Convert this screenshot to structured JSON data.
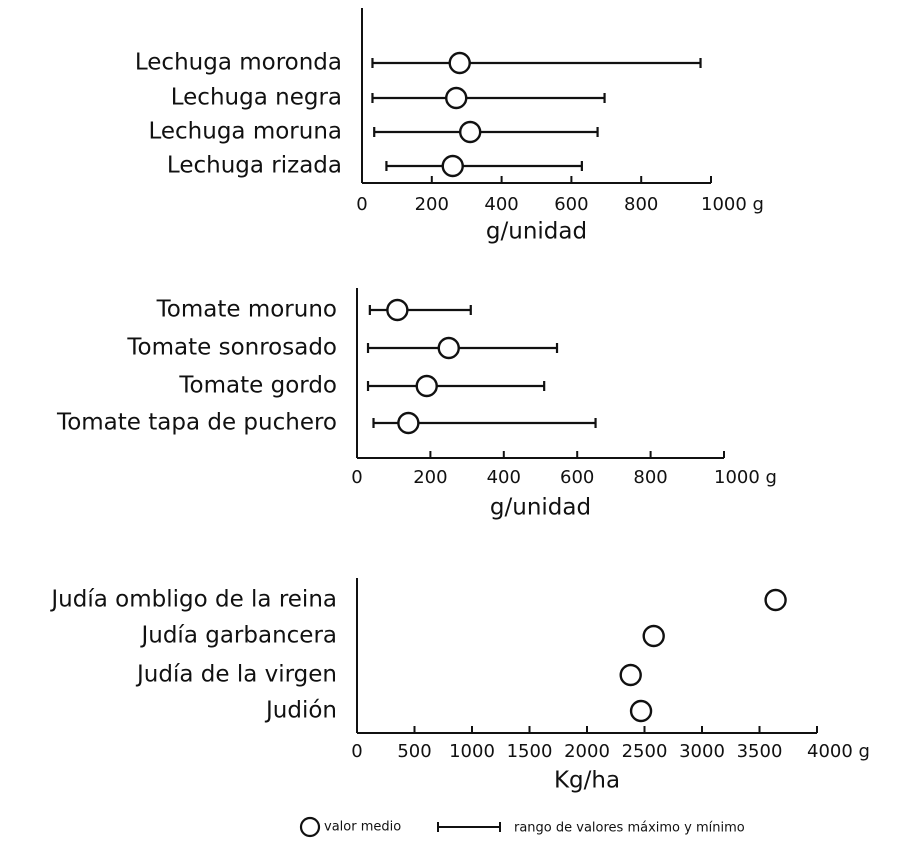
{
  "chart_data": [
    {
      "type": "range-dot",
      "categories": [
        "Lechuga moronda",
        "Lechuga negra",
        "Lechuga moruna",
        "Lechuga rizada"
      ],
      "mean": [
        280,
        270,
        310,
        260
      ],
      "min": [
        30,
        30,
        35,
        70
      ],
      "max": [
        970,
        695,
        675,
        630
      ],
      "xlim": [
        0,
        1000
      ],
      "xticks": [
        0,
        200,
        400,
        600,
        800,
        {
          "value": 1000,
          "label": "1000 g"
        }
      ],
      "x_label": "g/unidad"
    },
    {
      "type": "range-dot",
      "categories": [
        "Tomate moruno",
        "Tomate sonrosado",
        "Tomate gordo",
        "Tomate tapa de puchero"
      ],
      "mean": [
        110,
        250,
        190,
        140
      ],
      "min": [
        35,
        30,
        30,
        45
      ],
      "max": [
        310,
        545,
        510,
        650
      ],
      "xlim": [
        0,
        1000
      ],
      "xticks": [
        0,
        200,
        400,
        600,
        800,
        {
          "value": 1000,
          "label": "1000 g"
        }
      ],
      "x_label": "g/unidad"
    },
    {
      "type": "dot",
      "categories": [
        "Judía ombligo de la reina",
        "Judía garbancera",
        "Judía de la virgen",
        "Judión"
      ],
      "mean": [
        3640,
        2580,
        2380,
        2470
      ],
      "xlim": [
        0,
        4000
      ],
      "xticks": [
        0,
        500,
        1000,
        1500,
        2000,
        2500,
        3000,
        3500,
        {
          "value": 4000,
          "label": "4000 g"
        }
      ],
      "x_label": "Kg/ha"
    }
  ],
  "legend": {
    "mean": "valor medio",
    "range": "rango de valores máximo y mínimo"
  }
}
